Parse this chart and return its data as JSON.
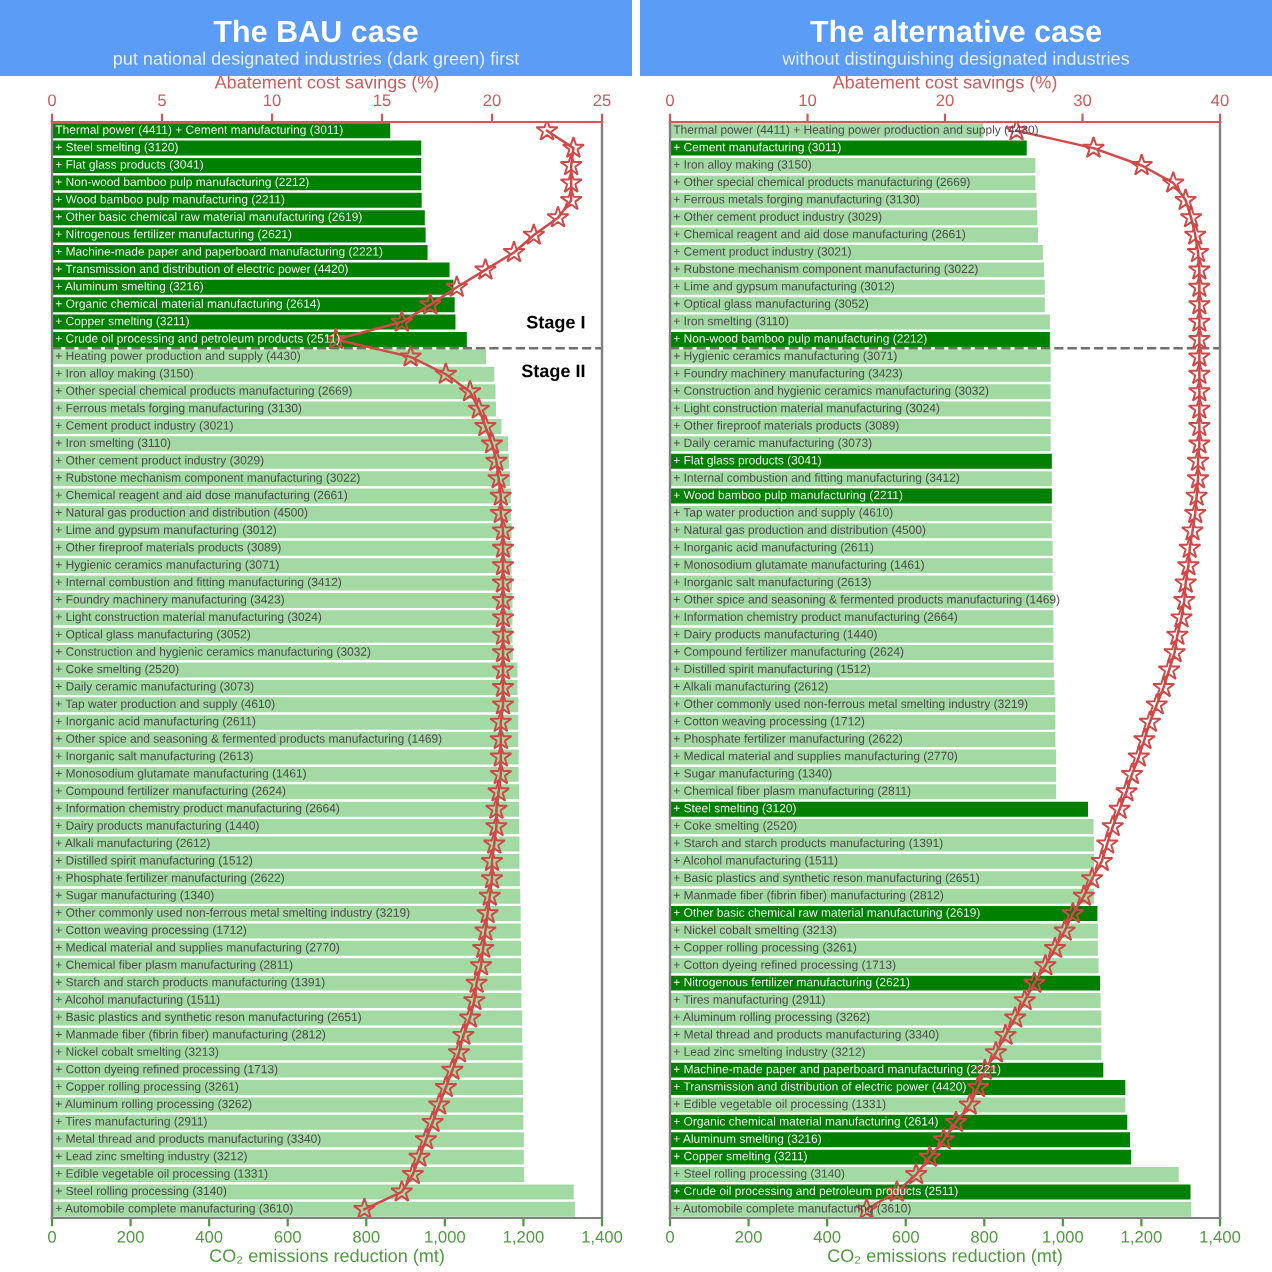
{
  "chart_data": [
    {
      "type": "bar",
      "orientation": "horizontal",
      "title": "The BAU case",
      "subtitle": "put national designated industries (dark green) first",
      "xlabel": "CO₂ emissions reduction (mt)",
      "x2label": "Abatement cost savings (%)",
      "categories": [
        "Thermal power (4411) + Cement manufacturing (3011)",
        "+ Steel smelting (3120)",
        "+ Flat glass products (3041)",
        "+ Non-wood bamboo pulp manufacturing (2212)",
        "+ Wood bamboo pulp manufacturing (2211)",
        "+ Other basic chemical raw material manufacturing (2619)",
        "+ Nitrogenous fertilizer manufacturing (2621)",
        "+ Machine-made paper and paperboard manufacturing (2221)",
        "+ Transmission and distribution of electric power (4420)",
        "+ Aluminum smelting (3216)",
        "+ Organic chemical material manufacturing (2614)",
        "+ Copper smelting (3211)",
        "+ Crude oil processing and petroleum products (2511)",
        "+ Heating power production and supply (4430)",
        "+ Iron alloy making (3150)",
        "+ Other special chemical products manufacturing (2669)",
        "+ Ferrous metals forging manufacturing (3130)",
        "+ Cement product industry (3021)",
        "+ Iron smelting (3110)",
        "+ Other cement product industry (3029)",
        "+ Rubstone mechanism component manufacturing (3022)",
        "+ Chemical reagent and aid dose manufacturing (2661)",
        "+ Natural gas production and distribution (4500)",
        "+ Lime and gypsum manufacturing (3012)",
        "+ Other fireproof materials products (3089)",
        "+ Hygienic ceramics manufacturing (3071)",
        "+ Internal combustion and fitting manufacturing (3412)",
        "+ Foundry machinery manufacturing (3423)",
        "+ Light construction material manufacturing (3024)",
        "+ Optical glass manufacturing (3052)",
        "+ Construction and hygienic ceramics manufacturing (3032)",
        "+ Coke smelting (2520)",
        "+ Daily ceramic manufacturing (3073)",
        "+ Tap water production and supply (4610)",
        "+ Inorganic acid manufacturing (2611)",
        "+ Other spice and seasoning & fermented products manufacturing (1469)",
        "+ Inorganic salt manufacturing (2613)",
        "+ Monosodium glutamate manufacturing (1461)",
        "+ Compound fertilizer manufacturing (2624)",
        "+ Information chemistry product manufacturing (2664)",
        "+ Dairy products manufacturing (1440)",
        "+ Alkali manufacturing (2612)",
        "+ Distilled spirit manufacturing (1512)",
        "+ Phosphate fertilizer manufacturing (2622)",
        "+ Sugar manufacturing (1340)",
        "+ Other commonly used non-ferrous metal smelting industry (3219)",
        "+ Cotton weaving processing (1712)",
        "+ Medical material and supplies manufacturing (2770)",
        "+ Chemical fiber plasm manufacturing (2811)",
        "+ Starch and starch products manufacturing (1391)",
        "+ Alcohol manufacturing (1511)",
        "+ Basic plastics and synthetic reson manufacturing (2651)",
        "+ Manmade fiber (fibrin fiber) manufacturing (2812)",
        "+ Nickel cobalt smelting (3213)",
        "+ Cotton dyeing refined processing (1713)",
        "+ Copper rolling processing (3261)",
        "+ Aluminum rolling processing (3262)",
        "+ Tires manufacturing (2911)",
        "+ Metal thread and products manufacturing (3340)",
        "+ Lead zinc smelting industry (3212)",
        "+ Edible vegetable oil processing (1331)",
        "+ Steel rolling processing (3140)",
        "+ Automobile complete manufacturing (3610)"
      ],
      "series": [
        {
          "values": [
            861,
            940,
            940,
            940,
            941,
            949,
            951,
            956,
            1012,
            1022,
            1025,
            1027,
            1056,
            1105,
            1126,
            1129,
            1130,
            1144,
            1161,
            1163,
            1166,
            1168,
            1168,
            1170,
            1170,
            1170,
            1171,
            1172,
            1172,
            1172,
            1173,
            1185,
            1185,
            1187,
            1187,
            1187,
            1188,
            1188,
            1189,
            1189,
            1189,
            1190,
            1190,
            1191,
            1192,
            1193,
            1193,
            1194,
            1194,
            1195,
            1195,
            1197,
            1197,
            1198,
            1198,
            1199,
            1199,
            1200,
            1201,
            1201,
            1202,
            1328,
            1331
          ],
          "colors": [
            "#008000",
            "#008000",
            "#008000",
            "#008000",
            "#008000",
            "#008000",
            "#008000",
            "#008000",
            "#008000",
            "#008000",
            "#008000",
            "#008000",
            "#008000",
            "#a3d9a3",
            "#a3d9a3",
            "#a3d9a3",
            "#a3d9a3",
            "#a3d9a3",
            "#a3d9a3",
            "#a3d9a3",
            "#a3d9a3",
            "#a3d9a3",
            "#a3d9a3",
            "#a3d9a3",
            "#a3d9a3",
            "#a3d9a3",
            "#a3d9a3",
            "#a3d9a3",
            "#a3d9a3",
            "#a3d9a3",
            "#a3d9a3",
            "#a3d9a3",
            "#a3d9a3",
            "#a3d9a3",
            "#a3d9a3",
            "#a3d9a3",
            "#a3d9a3",
            "#a3d9a3",
            "#a3d9a3",
            "#a3d9a3",
            "#a3d9a3",
            "#a3d9a3",
            "#a3d9a3",
            "#a3d9a3",
            "#a3d9a3",
            "#a3d9a3",
            "#a3d9a3",
            "#a3d9a3",
            "#a3d9a3",
            "#a3d9a3",
            "#a3d9a3",
            "#a3d9a3",
            "#a3d9a3",
            "#a3d9a3",
            "#a3d9a3",
            "#a3d9a3",
            "#a3d9a3",
            "#a3d9a3",
            "#a3d9a3",
            "#a3d9a3",
            "#a3d9a3",
            "#a3d9a3",
            "#a3d9a3"
          ]
        },
        {
          "type": "line",
          "axis": "x2",
          "color": "#d04848",
          "marker": "star",
          "values": [
            22.5,
            23.7,
            23.6,
            23.6,
            23.6,
            23.0,
            21.9,
            21.0,
            19.7,
            18.4,
            17.2,
            15.9,
            12.9,
            16.3,
            17.9,
            19.0,
            19.4,
            19.7,
            20.0,
            20.2,
            20.3,
            20.4,
            20.4,
            20.5,
            20.5,
            20.5,
            20.5,
            20.5,
            20.5,
            20.5,
            20.5,
            20.5,
            20.5,
            20.5,
            20.4,
            20.4,
            20.4,
            20.4,
            20.3,
            20.2,
            20.2,
            20.1,
            20.0,
            20.0,
            19.9,
            19.8,
            19.7,
            19.6,
            19.5,
            19.3,
            19.2,
            19.0,
            18.7,
            18.5,
            18.2,
            17.9,
            17.6,
            17.3,
            17.0,
            16.7,
            16.4,
            15.9,
            14.2
          ]
        }
      ],
      "xlim": [
        0,
        1400
      ],
      "xticks": [
        0,
        200,
        400,
        600,
        800,
        {
          "value": 1000,
          "label": "1,000"
        },
        {
          "value": 1200,
          "label": "1,200"
        },
        {
          "value": 1400,
          "label": "1,400"
        }
      ],
      "x2lim": [
        0,
        25
      ],
      "x2ticks": [
        0,
        5,
        10,
        15,
        20,
        25
      ],
      "annotations": [
        "Stage I",
        "Stage II"
      ]
    },
    {
      "type": "bar",
      "orientation": "horizontal",
      "title": "The alternative case",
      "subtitle": "without distinguishing designated industries",
      "xlabel": "CO₂ emissions reduction (mt)",
      "x2label": "Abatement cost savings (%)",
      "categories": [
        "Thermal power (4411) + Heating power production and supply (4430)",
        "+ Cement manufacturing (3011)",
        "+ Iron alloy making (3150)",
        "+ Other special chemical products manufacturing (2669)",
        "+ Ferrous metals forging manufacturing (3130)",
        "+ Other cement product industry (3029)",
        "+ Chemical reagent and aid dose manufacturing (2661)",
        "+ Cement product industry (3021)",
        "+ Rubstone mechanism component manufacturing (3022)",
        "+ Lime and gypsum manufacturing (3012)",
        "+ Optical glass manufacturing (3052)",
        "+ Iron smelting (3110)",
        "+ Non-wood bamboo pulp manufacturing (2212)",
        "+ Hygienic ceramics manufacturing (3071)",
        "+ Foundry machinery manufacturing (3423)",
        "+ Construction and hygienic ceramics manufacturing (3032)",
        "+ Light construction material manufacturing (3024)",
        "+ Other fireproof materials products (3089)",
        "+ Daily ceramic manufacturing (3073)",
        "+ Flat glass products (3041)",
        "+ Internal combustion and fitting manufacturing (3412)",
        "+ Wood bamboo pulp manufacturing (2211)",
        "+ Tap water production and supply (4610)",
        "+ Natural gas production and distribution (4500)",
        "+ Inorganic acid manufacturing (2611)",
        "+ Monosodium glutamate manufacturing (1461)",
        "+ Inorganic salt manufacturing (2613)",
        "+ Other spice and seasoning & fermented products manufacturing (1469)",
        "+ Information chemistry product manufacturing (2664)",
        "+ Dairy products manufacturing (1440)",
        "+ Compound fertilizer manufacturing (2624)",
        "+ Distilled spirit manufacturing (1512)",
        "+ Alkali manufacturing (2612)",
        "+ Other commonly used non-ferrous metal smelting industry (3219)",
        "+ Cotton weaving processing (1712)",
        "+ Phosphate fertilizer manufacturing (2622)",
        "+ Medical material and supplies manufacturing (2770)",
        "+ Sugar manufacturing (1340)",
        "+ Chemical fiber plasm manufacturing (2811)",
        "+ Steel smelting (3120)",
        "+ Coke smelting (2520)",
        "+ Starch and starch products manufacturing (1391)",
        "+ Alcohol manufacturing (1511)",
        "+ Basic plastics and synthetic reson manufacturing (2651)",
        "+ Manmade fiber (fibrin fiber) manufacturing (2812)",
        "+ Other basic chemical raw material manufacturing (2619)",
        "+ Nickel cobalt smelting (3213)",
        "+ Copper rolling processing (3261)",
        "+ Cotton dyeing refined processing (1713)",
        "+ Nitrogenous fertilizer manufacturing (2621)",
        "+ Tires manufacturing (2911)",
        "+ Aluminum rolling processing (3262)",
        "+ Metal thread and products manufacturing (3340)",
        "+ Lead zinc smelting industry (3212)",
        "+ Machine-made paper and paperboard manufacturing (2221)",
        "+ Transmission and distribution of electric power (4420)",
        "+ Edible vegetable oil processing (1331)",
        "+ Organic chemical material manufacturing (2614)",
        "+ Aluminum smelting (3216)",
        "+ Copper smelting (3211)",
        "+ Steel rolling processing (3140)",
        "+ Crude oil processing and petroleum products (2511)",
        "+ Automobile complete manufacturing (3610)"
      ],
      "series": [
        {
          "values": [
            798,
            908,
            930,
            930,
            933,
            935,
            937,
            949,
            952,
            954,
            954,
            967,
            967,
            969,
            969,
            969,
            969,
            969,
            969,
            972,
            972,
            972,
            972,
            972,
            974,
            974,
            974,
            976,
            976,
            976,
            976,
            977,
            979,
            981,
            981,
            981,
            983,
            983,
            983,
            1064,
            1078,
            1079,
            1079,
            1079,
            1079,
            1088,
            1089,
            1089,
            1091,
            1095,
            1096,
            1098,
            1098,
            1098,
            1103,
            1159,
            1159,
            1164,
            1171,
            1174,
            1295,
            1325,
            1327
          ],
          "colors": [
            "#a3d9a3",
            "#008000",
            "#a3d9a3",
            "#a3d9a3",
            "#a3d9a3",
            "#a3d9a3",
            "#a3d9a3",
            "#a3d9a3",
            "#a3d9a3",
            "#a3d9a3",
            "#a3d9a3",
            "#a3d9a3",
            "#008000",
            "#a3d9a3",
            "#a3d9a3",
            "#a3d9a3",
            "#a3d9a3",
            "#a3d9a3",
            "#a3d9a3",
            "#008000",
            "#a3d9a3",
            "#008000",
            "#a3d9a3",
            "#a3d9a3",
            "#a3d9a3",
            "#a3d9a3",
            "#a3d9a3",
            "#a3d9a3",
            "#a3d9a3",
            "#a3d9a3",
            "#a3d9a3",
            "#a3d9a3",
            "#a3d9a3",
            "#a3d9a3",
            "#a3d9a3",
            "#a3d9a3",
            "#a3d9a3",
            "#a3d9a3",
            "#a3d9a3",
            "#008000",
            "#a3d9a3",
            "#a3d9a3",
            "#a3d9a3",
            "#a3d9a3",
            "#a3d9a3",
            "#008000",
            "#a3d9a3",
            "#a3d9a3",
            "#a3d9a3",
            "#008000",
            "#a3d9a3",
            "#a3d9a3",
            "#a3d9a3",
            "#a3d9a3",
            "#008000",
            "#008000",
            "#a3d9a3",
            "#008000",
            "#008000",
            "#008000",
            "#a3d9a3",
            "#008000",
            "#a3d9a3"
          ]
        },
        {
          "type": "line",
          "axis": "x2",
          "color": "#d04848",
          "marker": "star",
          "values": [
            25.2,
            30.8,
            34.3,
            36.6,
            37.5,
            37.9,
            38.2,
            38.4,
            38.5,
            38.5,
            38.5,
            38.5,
            38.5,
            38.5,
            38.5,
            38.5,
            38.5,
            38.5,
            38.5,
            38.4,
            38.4,
            38.3,
            38.2,
            38.0,
            37.8,
            37.7,
            37.5,
            37.4,
            37.2,
            36.9,
            36.7,
            36.3,
            35.9,
            35.4,
            34.9,
            34.5,
            34.1,
            33.6,
            33.2,
            32.7,
            32.2,
            31.8,
            31.4,
            30.7,
            30.1,
            29.3,
            28.7,
            28.0,
            27.3,
            26.5,
            25.8,
            25.1,
            24.4,
            23.7,
            22.9,
            22.4,
            21.8,
            20.8,
            19.9,
            18.9,
            17.9,
            16.5,
            14.3
          ]
        }
      ],
      "xlim": [
        0,
        1400
      ],
      "xticks": [
        0,
        200,
        400,
        600,
        800,
        {
          "value": 1000,
          "label": "1,000"
        },
        {
          "value": 1200,
          "label": "1,200"
        },
        {
          "value": 1400,
          "label": "1,400"
        }
      ],
      "x2lim": [
        0,
        40
      ],
      "x2ticks": [
        0,
        10,
        20,
        30,
        40
      ]
    }
  ]
}
